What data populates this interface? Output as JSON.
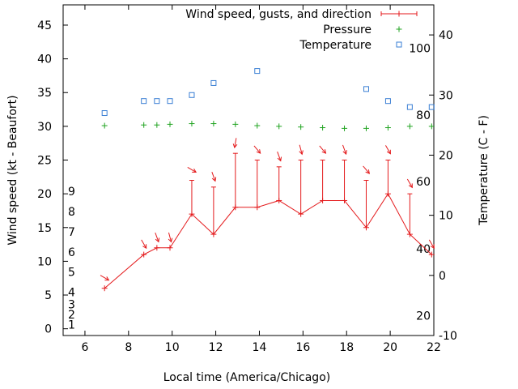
{
  "chart_data": {
    "type": "line",
    "xlabel": "Local time (America/Chicago)",
    "ylabel": "Wind speed (kt - Beaufort)",
    "y2label": "Temperature (C - F)",
    "xlim": [
      5,
      22
    ],
    "ylim": [
      -1,
      48
    ],
    "y2lim": [
      -10,
      45
    ],
    "x_ticks": [
      6,
      8,
      10,
      12,
      14,
      16,
      18,
      20,
      22
    ],
    "y_ticks": [
      0,
      5,
      10,
      15,
      20,
      25,
      30,
      35,
      40,
      45
    ],
    "y2_ticks": [
      -10,
      0,
      10,
      20,
      30,
      40
    ],
    "beaufort_labels": [
      {
        "text": "1",
        "y": 0.6
      },
      {
        "text": "2",
        "y": 2.1
      },
      {
        "text": "3",
        "y": 3.6
      },
      {
        "text": "4",
        "y": 5.4
      },
      {
        "text": "5",
        "y": 8.4
      },
      {
        "text": "6",
        "y": 11.4
      },
      {
        "text": "7",
        "y": 14.4
      },
      {
        "text": "8",
        "y": 17.4
      },
      {
        "text": "9",
        "y": 20.4
      }
    ],
    "fahrenheit_labels": [
      {
        "text": "20",
        "y2": -6.7
      },
      {
        "text": "40",
        "y2": 4.4
      },
      {
        "text": "60",
        "y2": 15.6
      },
      {
        "text": "80",
        "y2": 26.7
      },
      {
        "text": "100",
        "y2": 37.8
      }
    ],
    "legend": [
      "Wind speed, gusts, and direction",
      "Pressure",
      "Temperature"
    ],
    "legend_position": "top-right",
    "colors": {
      "wind": "#e41a1c",
      "pressure": "#1fa31f",
      "temperature": "#3a7fd4",
      "axis": "#000000"
    },
    "series": [
      {
        "name": "Wind speed, gusts, and direction",
        "points": [
          {
            "x": 6.9,
            "y": 6,
            "gust": null,
            "dir": 300
          },
          {
            "x": 8.7,
            "y": 11,
            "gust": null,
            "dir": 330
          },
          {
            "x": 9.3,
            "y": 12,
            "gust": null,
            "dir": 340
          },
          {
            "x": 9.9,
            "y": 12,
            "gust": null,
            "dir": 345
          },
          {
            "x": 10.9,
            "y": 17,
            "gust": 22,
            "dir": 300
          },
          {
            "x": 11.9,
            "y": 14,
            "gust": 21,
            "dir": 340
          },
          {
            "x": 12.9,
            "y": 18,
            "gust": 26,
            "dir": 10
          },
          {
            "x": 13.9,
            "y": 18,
            "gust": 25,
            "dir": 320
          },
          {
            "x": 14.9,
            "y": 19,
            "gust": 24,
            "dir": 340
          },
          {
            "x": 15.9,
            "y": 17,
            "gust": 25,
            "dir": 345
          },
          {
            "x": 16.9,
            "y": 19,
            "gust": 25,
            "dir": 320
          },
          {
            "x": 17.9,
            "y": 19,
            "gust": 25,
            "dir": 340
          },
          {
            "x": 18.9,
            "y": 15,
            "gust": 22,
            "dir": 320
          },
          {
            "x": 19.9,
            "y": 20,
            "gust": 25,
            "dir": 330
          },
          {
            "x": 20.9,
            "y": 14,
            "gust": 20,
            "dir": 330
          },
          {
            "x": 21.9,
            "y": 11,
            "gust": null,
            "dir": 330
          }
        ]
      },
      {
        "name": "Pressure",
        "points": [
          {
            "x": 6.9,
            "y": 30.1
          },
          {
            "x": 8.7,
            "y": 30.2
          },
          {
            "x": 9.3,
            "y": 30.2
          },
          {
            "x": 9.9,
            "y": 30.3
          },
          {
            "x": 10.9,
            "y": 30.4
          },
          {
            "x": 11.9,
            "y": 30.4
          },
          {
            "x": 12.9,
            "y": 30.3
          },
          {
            "x": 13.9,
            "y": 30.1
          },
          {
            "x": 14.9,
            "y": 30.0
          },
          {
            "x": 15.9,
            "y": 29.9
          },
          {
            "x": 16.9,
            "y": 29.8
          },
          {
            "x": 17.9,
            "y": 29.7
          },
          {
            "x": 18.9,
            "y": 29.7
          },
          {
            "x": 19.9,
            "y": 29.8
          },
          {
            "x": 20.9,
            "y": 30.0
          },
          {
            "x": 21.9,
            "y": 30.0
          }
        ]
      },
      {
        "name": "Temperature",
        "points": [
          {
            "x": 6.9,
            "y2": 27
          },
          {
            "x": 8.7,
            "y2": 29
          },
          {
            "x": 9.3,
            "y2": 29
          },
          {
            "x": 9.9,
            "y2": 29
          },
          {
            "x": 10.9,
            "y2": 30
          },
          {
            "x": 11.9,
            "y2": 32
          },
          {
            "x": 13.9,
            "y2": 34
          },
          {
            "x": 18.9,
            "y2": 31
          },
          {
            "x": 19.9,
            "y2": 29
          },
          {
            "x": 20.9,
            "y2": 28
          },
          {
            "x": 21.9,
            "y2": 28
          }
        ]
      }
    ]
  }
}
